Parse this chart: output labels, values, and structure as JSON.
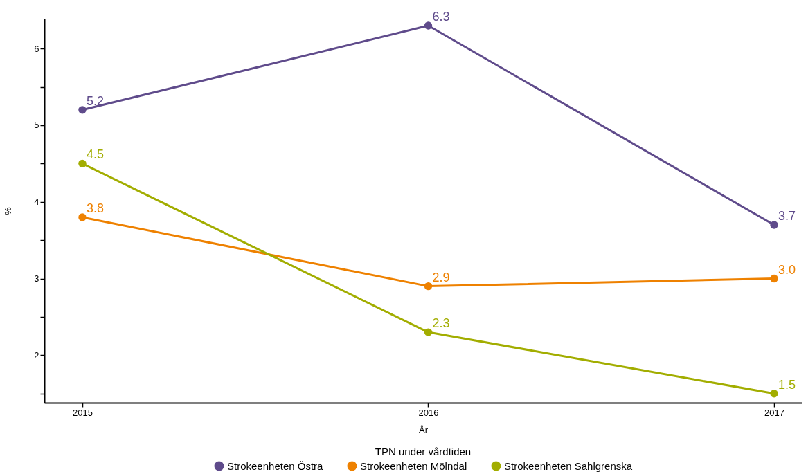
{
  "chart_data": {
    "type": "line",
    "xlabel": "År",
    "ylabel": "%",
    "legend_title": "TPN under vårdtiden",
    "x": [
      2015,
      2016,
      2017
    ],
    "xlim": [
      2014.89,
      2017.08
    ],
    "xticks": [
      2015,
      2016,
      2017
    ],
    "ylim": [
      1.38,
      6.39
    ],
    "yticks": [
      {
        "value": 1.5,
        "label": null
      },
      2,
      {
        "value": 2.5,
        "label": null
      },
      3,
      {
        "value": 3.5,
        "label": null
      },
      4,
      {
        "value": 4.5,
        "label": null
      },
      5,
      {
        "value": 5.5,
        "label": null
      },
      6
    ],
    "series": [
      {
        "name": "Strokeenheten Östra",
        "color": "#5f4b8b",
        "values": [
          5.2,
          6.3,
          3.7
        ],
        "value_labels": [
          "5.2",
          "6.3",
          "3.7"
        ]
      },
      {
        "name": "Strokeenheten Mölndal",
        "color": "#ee8100",
        "values": [
          3.8,
          2.9,
          3.0
        ],
        "value_labels": [
          "3.8",
          "2.9",
          "3.0"
        ]
      },
      {
        "name": "Strokeenheten Sahlgrenska",
        "color": "#a2ad00",
        "values": [
          4.5,
          2.3,
          1.5
        ],
        "value_labels": [
          "4.5",
          "2.3",
          "1.5"
        ]
      }
    ],
    "marker": "circle",
    "line_style": "solid",
    "grid": false,
    "legend": "bottom"
  }
}
